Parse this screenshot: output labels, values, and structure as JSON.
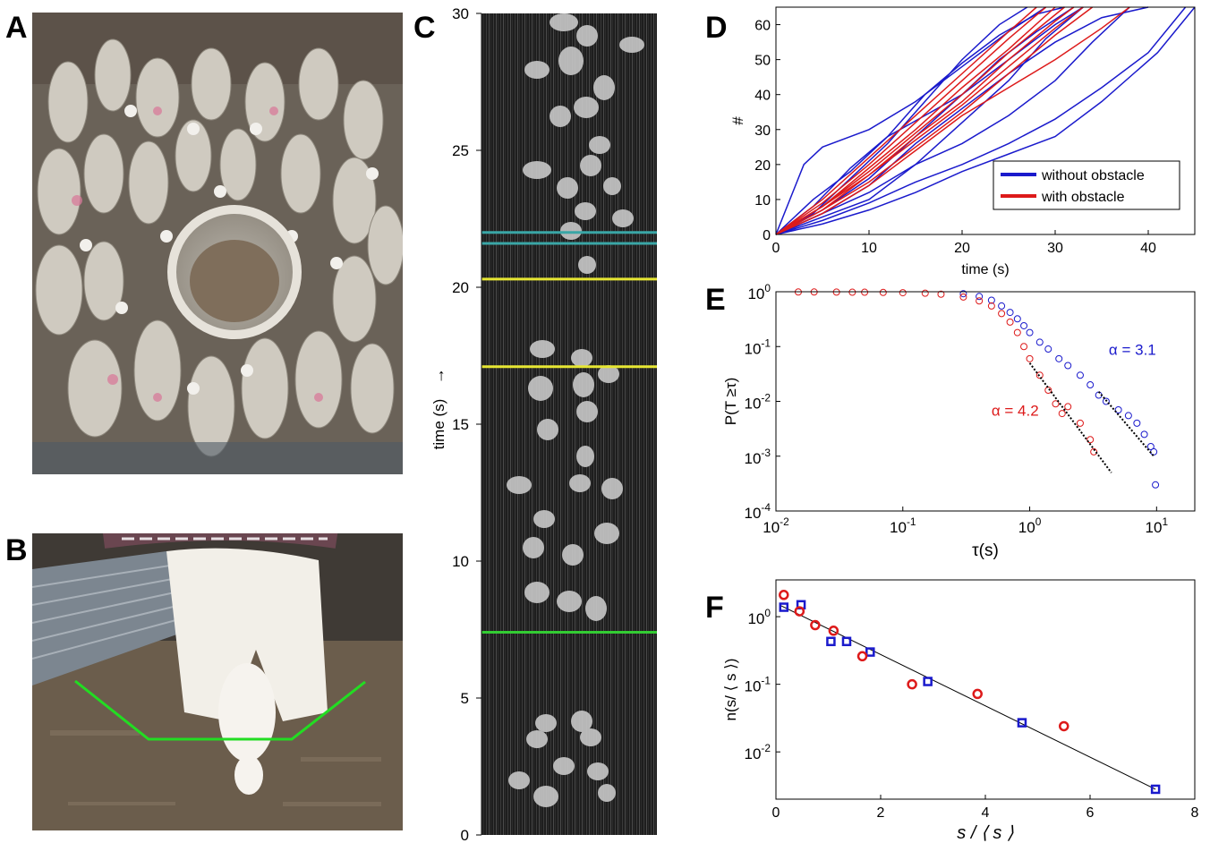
{
  "panel_letters": {
    "a": "A",
    "b": "B",
    "c": "C",
    "d": "D",
    "e": "E",
    "f": "F"
  },
  "panel_c": {
    "ylabel": "time (s)",
    "arrow": "→",
    "ticks": [
      "0",
      "5",
      "10",
      "15",
      "20",
      "25",
      "30"
    ],
    "tick_values": [
      0,
      5,
      10,
      15,
      20,
      25,
      30
    ],
    "lines": [
      {
        "t": 22.0,
        "color": "#3aa6a6"
      },
      {
        "t": 21.6,
        "color": "#3aa6a6"
      },
      {
        "t": 20.3,
        "color": "#e6e633"
      },
      {
        "t": 17.1,
        "color": "#e6e633"
      },
      {
        "t": 7.4,
        "color": "#33cc33"
      }
    ]
  },
  "chart_data": [
    {
      "panel": "D",
      "type": "line",
      "xlabel": "time (s)",
      "ylabel": "#",
      "xlim": [
        0,
        45
      ],
      "ylim": [
        0,
        65
      ],
      "xticks": [
        0,
        10,
        20,
        30,
        40
      ],
      "yticks": [
        0,
        10,
        20,
        30,
        40,
        50,
        60
      ],
      "legend": [
        {
          "name": "without obstacle",
          "color": "#1a1acc"
        },
        {
          "name": "with obstacle",
          "color": "#dd1a1a"
        }
      ],
      "legend_position": "bottom-right",
      "series": [
        {
          "group": "without obstacle",
          "color": "#1a1acc",
          "x": [
            0,
            5,
            10,
            15,
            20,
            25,
            30,
            35,
            40
          ],
          "y": [
            0,
            6,
            14,
            26,
            36,
            46,
            55,
            62,
            65
          ]
        },
        {
          "group": "without obstacle",
          "color": "#1a1acc",
          "x": [
            0,
            4,
            8,
            12,
            16,
            20,
            24,
            28,
            31
          ],
          "y": [
            0,
            8,
            19,
            28,
            40,
            49,
            57,
            63,
            65
          ]
        },
        {
          "group": "without obstacle",
          "color": "#1a1acc",
          "x": [
            0,
            5,
            10,
            15,
            20,
            25,
            30,
            33
          ],
          "y": [
            0,
            7,
            16,
            28,
            40,
            50,
            60,
            65
          ]
        },
        {
          "group": "without obstacle",
          "color": "#1a1acc",
          "x": [
            0,
            3,
            5,
            10,
            15,
            20,
            25,
            29
          ],
          "y": [
            0,
            20,
            25,
            30,
            38,
            48,
            58,
            65
          ]
        },
        {
          "group": "without obstacle",
          "color": "#1a1acc",
          "x": [
            0,
            5,
            10,
            15,
            20,
            25,
            30,
            35,
            40,
            44
          ],
          "y": [
            0,
            4,
            9,
            15,
            20,
            26,
            33,
            42,
            52,
            65
          ]
        },
        {
          "group": "without obstacle",
          "color": "#1a1acc",
          "x": [
            0,
            5,
            10,
            15,
            20,
            25,
            30,
            35,
            41,
            45
          ],
          "y": [
            0,
            3,
            7,
            12,
            18,
            23,
            28,
            38,
            52,
            65
          ]
        },
        {
          "group": "without obstacle",
          "color": "#1a1acc",
          "x": [
            0,
            4,
            8,
            12,
            16,
            20,
            24,
            27
          ],
          "y": [
            0,
            6,
            16,
            26,
            38,
            50,
            60,
            65
          ]
        },
        {
          "group": "without obstacle",
          "color": "#1a1acc",
          "x": [
            0,
            5,
            10,
            15,
            20,
            25,
            29,
            33
          ],
          "y": [
            0,
            5,
            10,
            20,
            32,
            44,
            56,
            65
          ]
        },
        {
          "group": "without obstacle",
          "color": "#1a1acc",
          "x": [
            0,
            5,
            10,
            15,
            20,
            25,
            30,
            34,
            38
          ],
          "y": [
            0,
            6,
            12,
            20,
            26,
            34,
            44,
            55,
            65
          ]
        },
        {
          "group": "without obstacle",
          "color": "#1a1acc",
          "x": [
            0,
            4,
            8,
            12,
            16,
            20,
            24,
            28,
            32
          ],
          "y": [
            0,
            10,
            18,
            28,
            34,
            40,
            50,
            58,
            65
          ]
        },
        {
          "group": "with obstacle",
          "color": "#dd1a1a",
          "x": [
            0,
            5,
            10,
            15,
            20,
            25,
            29
          ],
          "y": [
            0,
            9,
            20,
            32,
            44,
            56,
            65
          ]
        },
        {
          "group": "with obstacle",
          "color": "#dd1a1a",
          "x": [
            0,
            5,
            10,
            15,
            20,
            25,
            30
          ],
          "y": [
            0,
            8,
            19,
            30,
            42,
            53,
            65
          ]
        },
        {
          "group": "with obstacle",
          "color": "#dd1a1a",
          "x": [
            0,
            5,
            10,
            15,
            20,
            25,
            31
          ],
          "y": [
            0,
            8,
            18,
            29,
            40,
            52,
            65
          ]
        },
        {
          "group": "with obstacle",
          "color": "#dd1a1a",
          "x": [
            0,
            5,
            10,
            15,
            20,
            25,
            30,
            32
          ],
          "y": [
            0,
            7,
            17,
            28,
            38,
            50,
            61,
            65
          ]
        },
        {
          "group": "with obstacle",
          "color": "#dd1a1a",
          "x": [
            0,
            5,
            10,
            15,
            20,
            25,
            30,
            35,
            38
          ],
          "y": [
            0,
            6,
            14,
            24,
            34,
            42,
            50,
            59,
            65
          ]
        },
        {
          "group": "with obstacle",
          "color": "#dd1a1a",
          "x": [
            0,
            5,
            10,
            15,
            20,
            25,
            28
          ],
          "y": [
            0,
            10,
            22,
            34,
            46,
            58,
            65
          ]
        },
        {
          "group": "with obstacle",
          "color": "#dd1a1a",
          "x": [
            0,
            5,
            10,
            15,
            20,
            25,
            30,
            34
          ],
          "y": [
            0,
            7,
            15,
            25,
            35,
            46,
            57,
            65
          ]
        },
        {
          "group": "with obstacle",
          "color": "#dd1a1a",
          "x": [
            0,
            5,
            10,
            15,
            20,
            25,
            30,
            33
          ],
          "y": [
            0,
            8,
            17,
            27,
            37,
            48,
            59,
            65
          ]
        }
      ]
    },
    {
      "panel": "E",
      "type": "scatter",
      "xlabel": "τ(s)",
      "ylabel": "P(T ≥τ)",
      "xscale": "log",
      "yscale": "log",
      "xlim": [
        0.01,
        20
      ],
      "ylim": [
        0.0001,
        1
      ],
      "xticks": [
        0.01,
        0.1,
        1,
        10
      ],
      "yticks": [
        0.0001,
        0.001,
        0.01,
        0.1,
        1
      ],
      "xtick_labels": [
        {
          "base": "10",
          "exp": "-2"
        },
        {
          "base": "10",
          "exp": "-1"
        },
        {
          "base": "10",
          "exp": "0"
        },
        {
          "base": "10",
          "exp": "1"
        }
      ],
      "ytick_labels": [
        {
          "base": "10",
          "exp": "-4"
        },
        {
          "base": "10",
          "exp": "-3"
        },
        {
          "base": "10",
          "exp": "-2"
        },
        {
          "base": "10",
          "exp": "-1"
        },
        {
          "base": "10",
          "exp": "0"
        }
      ],
      "annotations": [
        {
          "text": "α = 3.1",
          "color": "#1a1acc",
          "x": 4.2,
          "y": 0.07
        },
        {
          "text": "α = 4.2",
          "color": "#dd1a1a",
          "x": 0.5,
          "y": 0.0055
        }
      ],
      "series": [
        {
          "name": "without obstacle",
          "color": "#1a1acc",
          "points": [
            [
              0.3,
              0.92
            ],
            [
              0.4,
              0.82
            ],
            [
              0.5,
              0.7
            ],
            [
              0.6,
              0.55
            ],
            [
              0.7,
              0.42
            ],
            [
              0.8,
              0.32
            ],
            [
              0.9,
              0.24
            ],
            [
              1.0,
              0.18
            ],
            [
              1.2,
              0.12
            ],
            [
              1.4,
              0.09
            ],
            [
              1.7,
              0.06
            ],
            [
              2.0,
              0.045
            ],
            [
              2.5,
              0.03
            ],
            [
              3.0,
              0.02
            ],
            [
              3.5,
              0.013
            ],
            [
              4.0,
              0.01
            ],
            [
              5.0,
              0.007
            ],
            [
              6.0,
              0.0055
            ],
            [
              7.0,
              0.004
            ],
            [
              8.0,
              0.0025
            ],
            [
              9.0,
              0.0015
            ],
            [
              9.5,
              0.0012
            ],
            [
              9.8,
              0.0003
            ]
          ]
        },
        {
          "name": "with obstacle",
          "color": "#dd1a1a",
          "points": [
            [
              0.015,
              0.99
            ],
            [
              0.02,
              0.99
            ],
            [
              0.03,
              0.985
            ],
            [
              0.04,
              0.98
            ],
            [
              0.05,
              0.98
            ],
            [
              0.07,
              0.97
            ],
            [
              0.1,
              0.96
            ],
            [
              0.15,
              0.94
            ],
            [
              0.2,
              0.9
            ],
            [
              0.3,
              0.8
            ],
            [
              0.4,
              0.68
            ],
            [
              0.5,
              0.55
            ],
            [
              0.6,
              0.4
            ],
            [
              0.7,
              0.28
            ],
            [
              0.8,
              0.18
            ],
            [
              0.9,
              0.1
            ],
            [
              1.0,
              0.06
            ],
            [
              1.2,
              0.03
            ],
            [
              1.4,
              0.016
            ],
            [
              1.6,
              0.009
            ],
            [
              1.8,
              0.006
            ],
            [
              2.0,
              0.008
            ],
            [
              3.0,
              0.002
            ],
            [
              3.2,
              0.0012
            ],
            [
              2.5,
              0.004
            ]
          ]
        }
      ],
      "fit_lines": [
        {
          "color": "#000000",
          "points": [
            [
              3.5,
              0.015
            ],
            [
              9.5,
              0.001
            ]
          ]
        },
        {
          "color": "#000000",
          "points": [
            [
              1.0,
              0.05
            ],
            [
              4.4,
              0.0005
            ]
          ]
        }
      ]
    },
    {
      "panel": "F",
      "type": "scatter",
      "xlabel": "s / ⟨ s ⟩",
      "ylabel": "n(s/ ⟨ s ⟩)",
      "yscale": "log",
      "xlim": [
        0,
        8
      ],
      "ylim": [
        0.002,
        3.5
      ],
      "xticks": [
        0,
        2,
        4,
        6,
        8
      ],
      "yticks": [
        0.01,
        0.1,
        1
      ],
      "ytick_labels": [
        {
          "base": "10",
          "exp": "-2"
        },
        {
          "base": "10",
          "exp": "-1"
        },
        {
          "base": "10",
          "exp": "0"
        }
      ],
      "series": [
        {
          "name": "without obstacle",
          "marker": "square",
          "color": "#1a1acc",
          "points": [
            [
              0.15,
              1.38
            ],
            [
              0.48,
              1.5
            ],
            [
              1.05,
              0.43
            ],
            [
              1.35,
              0.43
            ],
            [
              1.8,
              0.3
            ],
            [
              2.9,
              0.11
            ],
            [
              4.7,
              0.027
            ],
            [
              7.25,
              0.0028
            ]
          ]
        },
        {
          "name": "with obstacle",
          "marker": "circle",
          "color": "#dd1a1a",
          "points": [
            [
              0.15,
              2.1
            ],
            [
              0.45,
              1.2
            ],
            [
              0.75,
              0.75
            ],
            [
              1.1,
              0.62
            ],
            [
              1.65,
              0.26
            ],
            [
              2.6,
              0.1
            ],
            [
              3.85,
              0.072
            ],
            [
              5.5,
              0.024
            ]
          ]
        }
      ],
      "fit_line": {
        "color": "#000000",
        "points": [
          [
            0.1,
            1.45
          ],
          [
            7.25,
            0.0028
          ]
        ]
      }
    }
  ]
}
